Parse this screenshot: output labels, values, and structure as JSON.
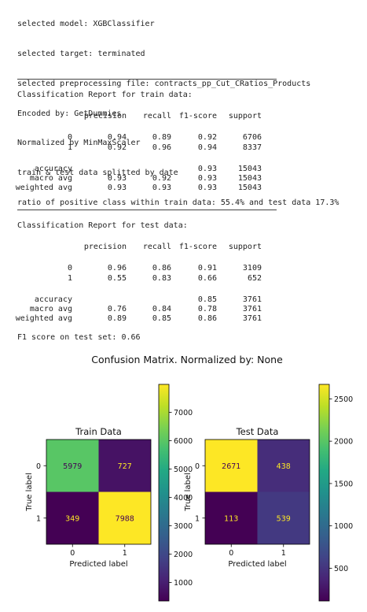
{
  "log_lines": [
    "selected model: XGBClassifier",
    "selected target: terminated",
    "selected preprocessing file: contracts_pp_Cut_CRatios_Products",
    "Encoded by: GetDummies",
    "Normalized by MinMaxScaler",
    "train & test data splitted by date",
    "ratio of positive class within train data: 55.4% and test data 17.3%"
  ],
  "reports": {
    "train": {
      "title": "Classification Report for train data:",
      "headers": [
        "precision",
        "recall",
        "f1-score",
        "support"
      ],
      "rows": [
        {
          "label": "0",
          "precision": "0.94",
          "recall": "0.89",
          "f1": "0.92",
          "support": "6706"
        },
        {
          "label": "1",
          "precision": "0.92",
          "recall": "0.96",
          "f1": "0.94",
          "support": "8337"
        },
        {
          "label": "accuracy",
          "precision": "",
          "recall": "",
          "f1": "0.93",
          "support": "15043"
        },
        {
          "label": "macro avg",
          "precision": "0.93",
          "recall": "0.92",
          "f1": "0.93",
          "support": "15043"
        },
        {
          "label": "weighted avg",
          "precision": "0.93",
          "recall": "0.93",
          "f1": "0.93",
          "support": "15043"
        }
      ]
    },
    "test": {
      "title": "Classification Report for test data:",
      "headers": [
        "precision",
        "recall",
        "f1-score",
        "support"
      ],
      "rows": [
        {
          "label": "0",
          "precision": "0.96",
          "recall": "0.86",
          "f1": "0.91",
          "support": "3109"
        },
        {
          "label": "1",
          "precision": "0.55",
          "recall": "0.83",
          "f1": "0.66",
          "support": "652"
        },
        {
          "label": "accuracy",
          "precision": "",
          "recall": "",
          "f1": "0.85",
          "support": "3761"
        },
        {
          "label": "macro avg",
          "precision": "0.76",
          "recall": "0.84",
          "f1": "0.78",
          "support": "3761"
        },
        {
          "label": "weighted avg",
          "precision": "0.89",
          "recall": "0.85",
          "f1": "0.86",
          "support": "3761"
        }
      ]
    }
  },
  "f1_line": "F1 score on test set: 0.66",
  "chart_data": {
    "type": "heatmap",
    "title": "Confusion Matrix. Normalized by: None",
    "colormap": "viridis",
    "panels": [
      {
        "title": "Train Data",
        "xlabel": "Predicted label",
        "ylabel": "True label",
        "x_ticks": [
          "0",
          "1"
        ],
        "y_ticks": [
          "0",
          "1"
        ],
        "matrix": [
          [
            5979,
            727
          ],
          [
            349,
            7988
          ]
        ],
        "colorbar": {
          "range": [
            349,
            7988
          ],
          "ticks": [
            1000,
            2000,
            3000,
            4000,
            5000,
            6000,
            7000
          ]
        }
      },
      {
        "title": "Test Data",
        "xlabel": "Predicted label",
        "ylabel": "True label",
        "x_ticks": [
          "0",
          "1"
        ],
        "y_ticks": [
          "0",
          "1"
        ],
        "matrix": [
          [
            2671,
            438
          ],
          [
            113,
            539
          ]
        ],
        "colorbar": {
          "range": [
            113,
            2671
          ],
          "ticks": [
            500,
            1000,
            1500,
            2000,
            2500
          ]
        }
      }
    ]
  }
}
